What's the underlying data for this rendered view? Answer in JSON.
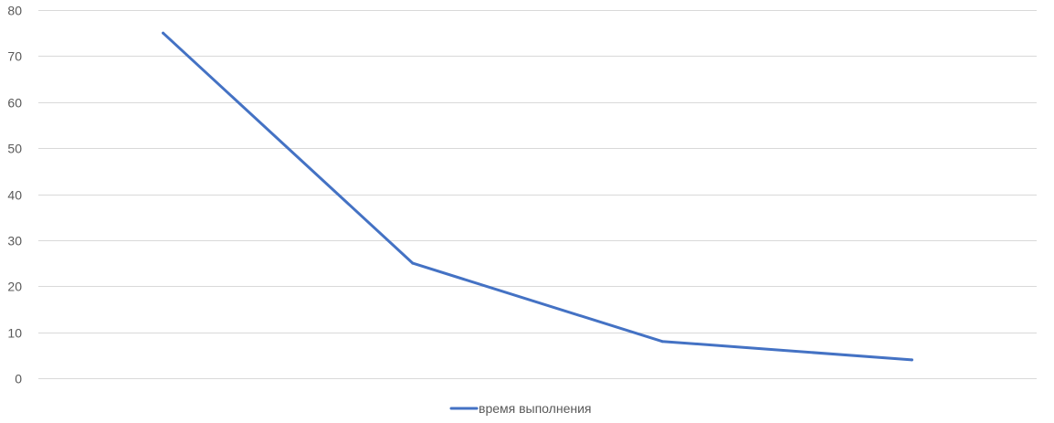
{
  "chart_data": {
    "type": "line",
    "title": "",
    "xlabel": "",
    "ylabel": "",
    "ylim": [
      0,
      80
    ],
    "y_ticks": [
      0,
      10,
      20,
      30,
      40,
      50,
      60,
      70,
      80
    ],
    "grid": true,
    "legend_position": "bottom",
    "categories": [
      "",
      "",
      "",
      ""
    ],
    "series": [
      {
        "name": "время выполнения",
        "color": "#4472c4",
        "values": [
          75,
          25,
          8,
          4
        ]
      }
    ]
  }
}
